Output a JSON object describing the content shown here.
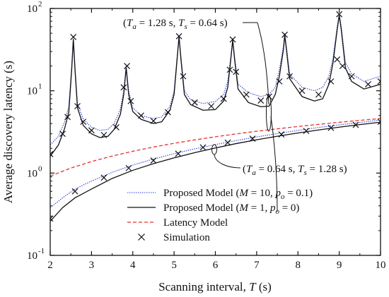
{
  "chart_data": {
    "type": "line",
    "xlabel": "Scanning interval, T (s)",
    "ylabel": "Average discovery latency (s)",
    "xlim": [
      2,
      10
    ],
    "ylim": [
      0.1,
      100
    ],
    "yscale": "log",
    "grid": false,
    "legend_position": "bottom-center",
    "x_ticks": [
      "2",
      "3",
      "4",
      "5",
      "6",
      "7",
      "8",
      "9",
      "10"
    ],
    "y_ticks": [
      {
        "base": "10",
        "exp": "-1",
        "value": 0.1
      },
      {
        "base": "10",
        "exp": "0",
        "value": 1
      },
      {
        "base": "10",
        "exp": "1",
        "value": 10
      },
      {
        "base": "10",
        "exp": "2",
        "value": 100
      }
    ],
    "colors": {
      "proposed_m10": "#2b3fd6",
      "proposed_m1": "#111111",
      "latency_model": "#e8302f",
      "simulation": "#111111",
      "axes": "#111111"
    },
    "annotations": {
      "upper": "(Ta = 1.28 s, Ts = 0.64 s)",
      "lower": "(Ta = 0.64 s, Ts = 1.28 s)"
    },
    "series": [
      {
        "name": "Proposed Model (M = 10, po = 0.1)",
        "group": "Ta=1.28, Ts=0.64",
        "style": "dotted-blue",
        "points": [
          [
            2.0,
            2.2
          ],
          [
            2.2,
            2.8
          ],
          [
            2.35,
            4.2
          ],
          [
            2.45,
            6.5
          ],
          [
            2.52,
            20
          ],
          [
            2.56,
            46
          ],
          [
            2.6,
            20
          ],
          [
            2.66,
            7
          ],
          [
            2.8,
            4.5
          ],
          [
            3.0,
            3.6
          ],
          [
            3.2,
            3.3
          ],
          [
            3.4,
            3.4
          ],
          [
            3.55,
            4.0
          ],
          [
            3.7,
            6.0
          ],
          [
            3.78,
            10
          ],
          [
            3.84,
            20
          ],
          [
            3.9,
            10
          ],
          [
            4.0,
            6.2
          ],
          [
            4.2,
            5.0
          ],
          [
            4.5,
            4.6
          ],
          [
            4.7,
            4.8
          ],
          [
            4.9,
            6.5
          ],
          [
            5.0,
            10
          ],
          [
            5.07,
            25
          ],
          [
            5.12,
            47
          ],
          [
            5.17,
            25
          ],
          [
            5.25,
            10
          ],
          [
            5.4,
            7.8
          ],
          [
            5.7,
            7.0
          ],
          [
            6.0,
            7.4
          ],
          [
            6.2,
            9.0
          ],
          [
            6.3,
            13
          ],
          [
            6.37,
            25
          ],
          [
            6.42,
            43
          ],
          [
            6.47,
            25
          ],
          [
            6.55,
            12
          ],
          [
            6.8,
            9.5
          ],
          [
            7.1,
            8.5
          ],
          [
            7.3,
            9.0
          ],
          [
            7.45,
            11
          ],
          [
            7.55,
            18
          ],
          [
            7.65,
            35
          ],
          [
            7.68,
            50
          ],
          [
            7.72,
            35
          ],
          [
            7.8,
            16
          ],
          [
            8.1,
            11
          ],
          [
            8.4,
            10
          ],
          [
            8.6,
            11
          ],
          [
            8.75,
            15
          ],
          [
            8.85,
            25
          ],
          [
            8.95,
            60
          ],
          [
            9.0,
            87
          ],
          [
            9.05,
            60
          ],
          [
            9.15,
            22
          ],
          [
            9.3,
            16
          ],
          [
            9.6,
            13
          ],
          [
            10.0,
            15
          ]
        ]
      },
      {
        "name": "Proposed Model (M = 1, po = 0)",
        "group": "Ta=1.28, Ts=0.64",
        "style": "solid-black",
        "points": [
          [
            2.0,
            1.6
          ],
          [
            2.2,
            2.2
          ],
          [
            2.35,
            3.5
          ],
          [
            2.45,
            5.5
          ],
          [
            2.52,
            18
          ],
          [
            2.56,
            42
          ],
          [
            2.6,
            18
          ],
          [
            2.66,
            6.2
          ],
          [
            2.8,
            3.8
          ],
          [
            3.0,
            3.0
          ],
          [
            3.2,
            2.7
          ],
          [
            3.4,
            2.8
          ],
          [
            3.55,
            3.4
          ],
          [
            3.7,
            5.2
          ],
          [
            3.78,
            9
          ],
          [
            3.84,
            19
          ],
          [
            3.9,
            9
          ],
          [
            4.0,
            5.6
          ],
          [
            4.2,
            4.5
          ],
          [
            4.5,
            4.0
          ],
          [
            4.7,
            4.2
          ],
          [
            4.9,
            5.8
          ],
          [
            5.0,
            9
          ],
          [
            5.07,
            23
          ],
          [
            5.12,
            45
          ],
          [
            5.17,
            23
          ],
          [
            5.25,
            9
          ],
          [
            5.4,
            6.8
          ],
          [
            5.7,
            5.8
          ],
          [
            6.0,
            5.9
          ],
          [
            6.2,
            7.5
          ],
          [
            6.3,
            11
          ],
          [
            6.37,
            23
          ],
          [
            6.42,
            41
          ],
          [
            6.47,
            23
          ],
          [
            6.55,
            10.5
          ],
          [
            6.8,
            7.2
          ],
          [
            7.1,
            6.4
          ],
          [
            7.3,
            6.5
          ],
          [
            7.45,
            9
          ],
          [
            7.55,
            15
          ],
          [
            7.65,
            32
          ],
          [
            7.68,
            47
          ],
          [
            7.72,
            32
          ],
          [
            7.8,
            14
          ],
          [
            8.1,
            8.5
          ],
          [
            8.4,
            7.5
          ],
          [
            8.6,
            8.0
          ],
          [
            8.75,
            12
          ],
          [
            8.85,
            22
          ],
          [
            8.95,
            55
          ],
          [
            9.0,
            82
          ],
          [
            9.05,
            55
          ],
          [
            9.15,
            19
          ],
          [
            9.3,
            13
          ],
          [
            9.6,
            10.5
          ],
          [
            10.0,
            12
          ]
        ]
      },
      {
        "name": "Proposed Model (M = 10, po = 0.1)",
        "group": "Ta=0.64, Ts=1.28",
        "style": "dotted-blue",
        "points": [
          [
            2.0,
            0.38
          ],
          [
            2.3,
            0.5
          ],
          [
            2.6,
            0.64
          ],
          [
            3.0,
            0.8
          ],
          [
            3.5,
            1.02
          ],
          [
            4.0,
            1.25
          ],
          [
            4.5,
            1.48
          ],
          [
            5.0,
            1.72
          ],
          [
            5.5,
            1.97
          ],
          [
            6.0,
            2.22
          ],
          [
            6.5,
            2.48
          ],
          [
            7.0,
            2.75
          ],
          [
            7.5,
            3.02
          ],
          [
            8.0,
            3.3
          ],
          [
            8.5,
            3.58
          ],
          [
            9.0,
            3.85
          ],
          [
            9.5,
            4.12
          ],
          [
            10.0,
            4.4
          ]
        ]
      },
      {
        "name": "Proposed Model (M = 1, po = 0)",
        "group": "Ta=0.64, Ts=1.28",
        "style": "solid-black",
        "points": [
          [
            2.0,
            0.26
          ],
          [
            2.3,
            0.38
          ],
          [
            2.6,
            0.5
          ],
          [
            3.0,
            0.64
          ],
          [
            3.5,
            0.86
          ],
          [
            4.0,
            1.08
          ],
          [
            4.5,
            1.3
          ],
          [
            5.0,
            1.53
          ],
          [
            5.5,
            1.77
          ],
          [
            6.0,
            2.02
          ],
          [
            6.5,
            2.28
          ],
          [
            7.0,
            2.54
          ],
          [
            7.5,
            2.8
          ],
          [
            8.0,
            3.07
          ],
          [
            8.5,
            3.34
          ],
          [
            9.0,
            3.61
          ],
          [
            9.5,
            3.88
          ],
          [
            10.0,
            4.15
          ]
        ]
      },
      {
        "name": "Latency Model",
        "group": "Ta=0.64, Ts=1.28",
        "style": "dashed-red",
        "points": [
          [
            2.0,
            0.92
          ],
          [
            2.5,
            1.15
          ],
          [
            3.0,
            1.38
          ],
          [
            3.5,
            1.61
          ],
          [
            4.0,
            1.84
          ],
          [
            4.5,
            2.07
          ],
          [
            5.0,
            2.3
          ],
          [
            5.5,
            2.53
          ],
          [
            6.0,
            2.76
          ],
          [
            6.5,
            2.99
          ],
          [
            7.0,
            3.22
          ],
          [
            7.5,
            3.45
          ],
          [
            8.0,
            3.68
          ],
          [
            8.5,
            3.91
          ],
          [
            9.0,
            4.14
          ],
          [
            9.5,
            4.37
          ],
          [
            10.0,
            4.6
          ]
        ]
      },
      {
        "name": "Simulation",
        "group": "Ta=1.28, Ts=0.64",
        "style": "black-x",
        "points": [
          [
            2.0,
            1.7
          ],
          [
            2.3,
            3.0
          ],
          [
            2.42,
            4.8
          ],
          [
            2.56,
            45
          ],
          [
            2.66,
            6.5
          ],
          [
            2.8,
            4.2
          ],
          [
            3.0,
            3.3
          ],
          [
            3.3,
            2.9
          ],
          [
            3.6,
            3.6
          ],
          [
            3.78,
            11
          ],
          [
            3.86,
            20
          ],
          [
            3.95,
            7.5
          ],
          [
            4.2,
            5.0
          ],
          [
            4.5,
            4.3
          ],
          [
            4.85,
            5.5
          ],
          [
            5.12,
            46
          ],
          [
            5.22,
            15
          ],
          [
            5.5,
            7.2
          ],
          [
            5.9,
            6.5
          ],
          [
            6.2,
            8.0
          ],
          [
            6.35,
            18
          ],
          [
            6.42,
            42
          ],
          [
            6.5,
            17
          ],
          [
            6.75,
            9.0
          ],
          [
            7.1,
            7.6
          ],
          [
            7.3,
            8.5
          ],
          [
            7.55,
            13
          ],
          [
            7.68,
            48
          ],
          [
            7.8,
            15
          ],
          [
            8.1,
            10
          ],
          [
            8.5,
            9.0
          ],
          [
            8.8,
            13
          ],
          [
            8.95,
            24
          ],
          [
            9.0,
            85
          ],
          [
            9.08,
            20
          ],
          [
            9.3,
            15
          ],
          [
            9.7,
            12
          ],
          [
            10.0,
            13
          ]
        ]
      },
      {
        "name": "Simulation",
        "group": "Ta=0.64, Ts=1.28",
        "style": "black-x",
        "points": [
          [
            2.0,
            0.28
          ],
          [
            2.6,
            0.6
          ],
          [
            3.3,
            0.88
          ],
          [
            3.9,
            1.15
          ],
          [
            4.5,
            1.42
          ],
          [
            5.1,
            1.72
          ],
          [
            5.7,
            2.05
          ],
          [
            6.3,
            2.35
          ],
          [
            6.9,
            2.62
          ],
          [
            7.6,
            2.95
          ],
          [
            8.2,
            3.25
          ],
          [
            8.8,
            3.55
          ],
          [
            9.4,
            3.85
          ],
          [
            10.0,
            4.2
          ]
        ]
      }
    ],
    "legend": [
      {
        "style": "dotted-blue",
        "text": "Proposed Model (",
        "italic1": "M",
        "mid": " = 10, ",
        "italic2": "p",
        "sub": "o",
        "tail": " = 0.1)"
      },
      {
        "style": "solid-black",
        "text": "Proposed Model (",
        "italic1": "M",
        "mid": " = 1, ",
        "italic2": "p",
        "sub": "o",
        "tail": " = 0)"
      },
      {
        "style": "dashed-red",
        "text": "Latency Model"
      },
      {
        "style": "black-x",
        "text": "Simulation"
      }
    ]
  }
}
